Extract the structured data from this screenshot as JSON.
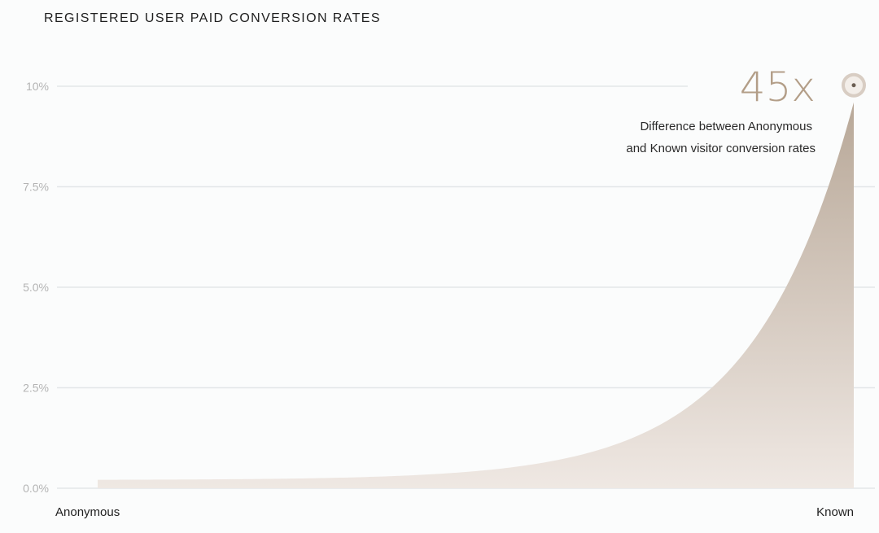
{
  "title": "REGISTERED USER PAID CONVERSION RATES",
  "colors": {
    "gridline": "#e3e6e8",
    "fill_top": "#b8a898",
    "fill_bottom": "#efe8e3",
    "marker": "#d8cdc3",
    "callout": "#b39e88"
  },
  "callout": {
    "value": "45x",
    "line1": "Difference between Anonymous",
    "line2": "and Known visitor conversion rates"
  },
  "chart_data": {
    "type": "area",
    "categories": [
      "Anonymous",
      "Known"
    ],
    "values": [
      0.21,
      9.6
    ],
    "ylim": [
      0,
      10
    ],
    "yticks": [
      "0.0%",
      "2.5%",
      "5.0%",
      "7.5%",
      "10%"
    ],
    "ytick_values": [
      0,
      2.5,
      5,
      7.5,
      10
    ],
    "grid": true,
    "curve": "exponential"
  }
}
